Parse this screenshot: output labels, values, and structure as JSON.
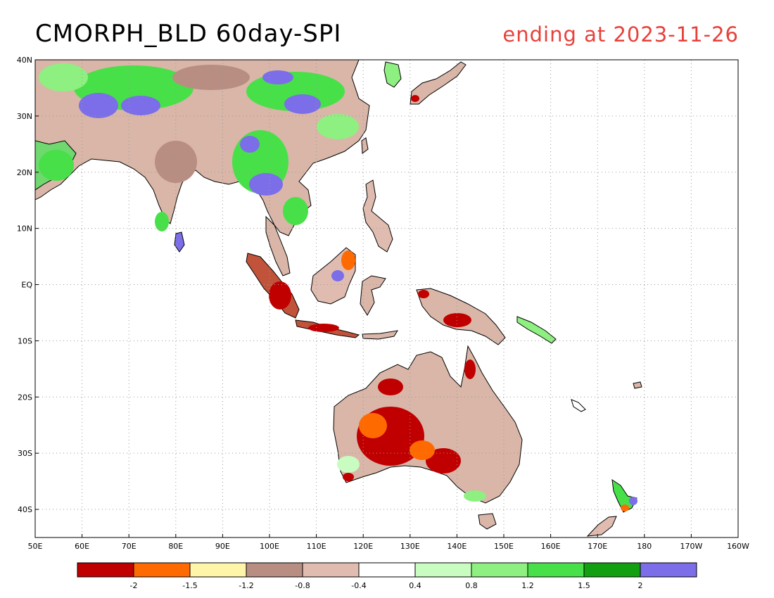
{
  "title": "CMORPH_BLD 60day-SPI",
  "subtitle": "ending at 2023-11-26",
  "map": {
    "lon_range": [
      50,
      200
    ],
    "lat_range": [
      -45,
      40
    ],
    "lon_ticks": [
      {
        "lon": 50,
        "label": "50E"
      },
      {
        "lon": 60,
        "label": "60E"
      },
      {
        "lon": 70,
        "label": "70E"
      },
      {
        "lon": 80,
        "label": "80E"
      },
      {
        "lon": 90,
        "label": "90E"
      },
      {
        "lon": 100,
        "label": "100E"
      },
      {
        "lon": 110,
        "label": "110E"
      },
      {
        "lon": 120,
        "label": "120E"
      },
      {
        "lon": 130,
        "label": "130E"
      },
      {
        "lon": 140,
        "label": "140E"
      },
      {
        "lon": 150,
        "label": "150E"
      },
      {
        "lon": 160,
        "label": "160E"
      },
      {
        "lon": 170,
        "label": "170E"
      },
      {
        "lon": 180,
        "label": "180"
      },
      {
        "lon": 190,
        "label": "170W"
      },
      {
        "lon": 200,
        "label": "160W"
      }
    ],
    "lat_ticks": [
      {
        "lat": 40,
        "label": "40N"
      },
      {
        "lat": 30,
        "label": "30N"
      },
      {
        "lat": 20,
        "label": "20N"
      },
      {
        "lat": 10,
        "label": "10N"
      },
      {
        "lat": 0,
        "label": "EQ"
      },
      {
        "lat": -10,
        "label": "10S"
      },
      {
        "lat": -20,
        "label": "20S"
      },
      {
        "lat": -30,
        "label": "30S"
      },
      {
        "lat": -40,
        "label": "40S"
      }
    ],
    "gridlines": true
  },
  "legend": {
    "colors": [
      "#c00000",
      "#ff6a00",
      "#fff5a8",
      "#b88e82",
      "#e0bcb0",
      "#ffffff",
      "#c8fcc0",
      "#8ef080",
      "#48e048",
      "#12a012",
      "#7b6ee8"
    ],
    "labels": [
      "-2",
      "-1.5",
      "-1.2",
      "-0.8",
      "-0.4",
      "0.4",
      "0.8",
      "1.2",
      "1.5",
      "2"
    ]
  },
  "colors": {
    "coastline": "#000000",
    "grid": "#9a9a9a",
    "subtitle": "#e8403a"
  }
}
